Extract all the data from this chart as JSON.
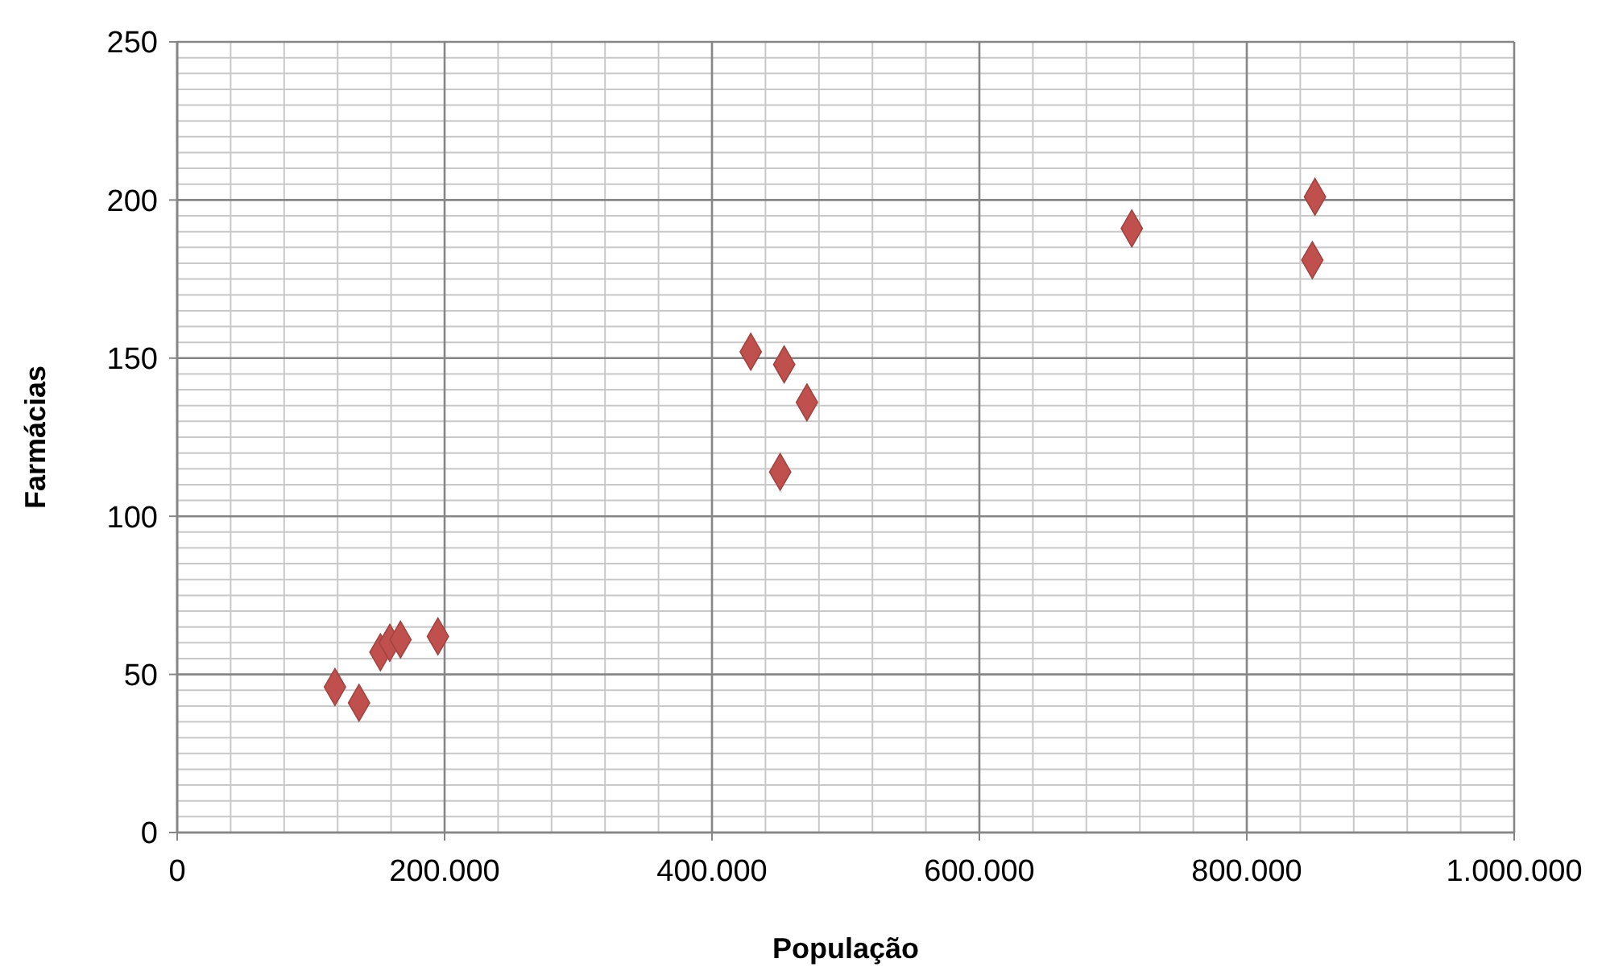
{
  "chart_data": {
    "type": "scatter",
    "xlabel": "População",
    "ylabel": "Farmácias",
    "x": [
      118000,
      136000,
      152000,
      159000,
      167000,
      195000,
      429000,
      454000,
      451000,
      471000,
      714000,
      851000,
      849000
    ],
    "values": [
      46,
      41,
      57,
      60,
      61,
      62,
      152,
      148,
      114,
      136,
      191,
      201,
      181
    ],
    "color": "#c0504d",
    "marker": "diamond",
    "xlim": [
      0,
      1000000
    ],
    "xticks": [
      0,
      {
        "value": 200000,
        "label": "200.000"
      },
      {
        "value": 400000,
        "label": "400.000"
      },
      {
        "value": 600000,
        "label": "600.000"
      },
      {
        "value": 800000,
        "label": "800.000"
      },
      {
        "value": 1000000,
        "label": "1.000.000"
      }
    ],
    "ylim": [
      0,
      250
    ],
    "yticks": [
      0,
      50,
      100,
      150,
      200,
      250
    ],
    "grid": true
  }
}
